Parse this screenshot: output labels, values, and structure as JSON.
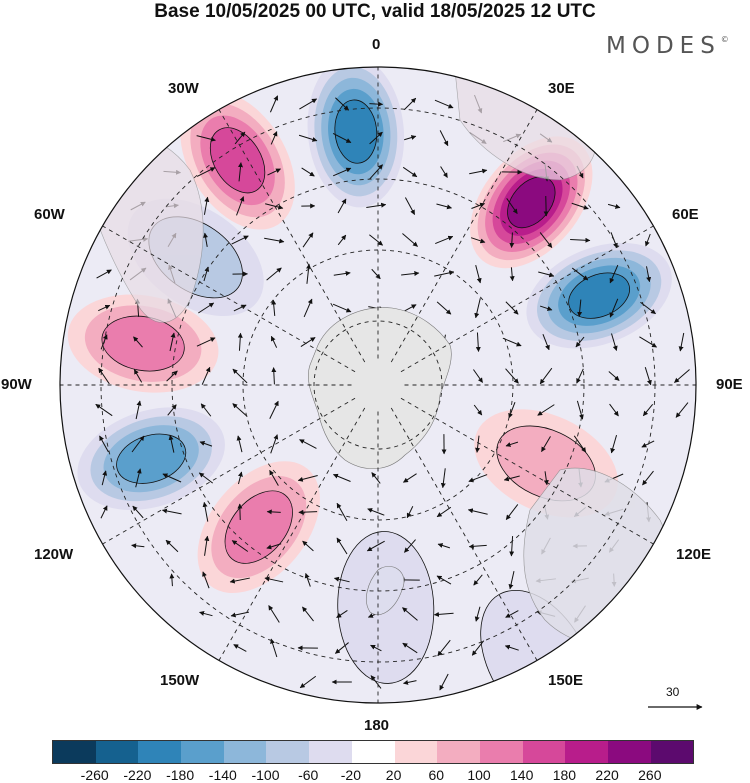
{
  "title": "Base 10/05/2025 00 UTC, valid 18/05/2025 12 UTC",
  "brand": "MODES",
  "brand_mark": "©",
  "map_labels": {
    "top": "0",
    "top_right": "30E",
    "right_upper": "60E",
    "right": "90E",
    "right_lower": "120E",
    "bottom_right": "150E",
    "bottom": "180",
    "bottom_left": "150W",
    "left_lower": "120W",
    "left": "90W",
    "left_upper": "60W",
    "top_left": "30W"
  },
  "reference_vector": "30",
  "colorbar": {
    "colors": [
      "#0b3a5c",
      "#15618f",
      "#2f84b8",
      "#5a9fcc",
      "#8db7da",
      "#b8c9e3",
      "#dedcef",
      "#ffffff",
      "#fbd6d8",
      "#f3adc0",
      "#ea7dad",
      "#d6489a",
      "#b81d8b",
      "#8b0a7f",
      "#5c0a6e"
    ],
    "ticks": [
      "-260",
      "-220",
      "-180",
      "-140",
      "-100",
      "-60",
      "-20",
      "20",
      "60",
      "100",
      "140",
      "180",
      "220",
      "260"
    ]
  },
  "anomalies": [
    {
      "sign": "neg",
      "level": 5,
      "lon": -5,
      "lat": -42
    },
    {
      "sign": "pos",
      "level": 6,
      "lon": 40,
      "lat": -45
    },
    {
      "sign": "neg",
      "level": 5,
      "lon": 68,
      "lat": -45
    },
    {
      "sign": "pos",
      "level": 4,
      "lon": -32,
      "lat": -40
    },
    {
      "sign": "neg",
      "level": 2,
      "lon": -55,
      "lat": -48
    },
    {
      "sign": "pos",
      "level": 3,
      "lon": -80,
      "lat": -45
    },
    {
      "sign": "neg",
      "level": 4,
      "lon": -108,
      "lat": -45
    },
    {
      "sign": "pos",
      "level": 3,
      "lon": -140,
      "lat": -55
    },
    {
      "sign": "pos",
      "level": 2,
      "lon": 115,
      "lat": -55
    },
    {
      "sign": "neg",
      "level": 1,
      "lon": 178,
      "lat": -48
    },
    {
      "sign": "neg",
      "level": 1,
      "lon": 150,
      "lat": -30
    }
  ]
}
